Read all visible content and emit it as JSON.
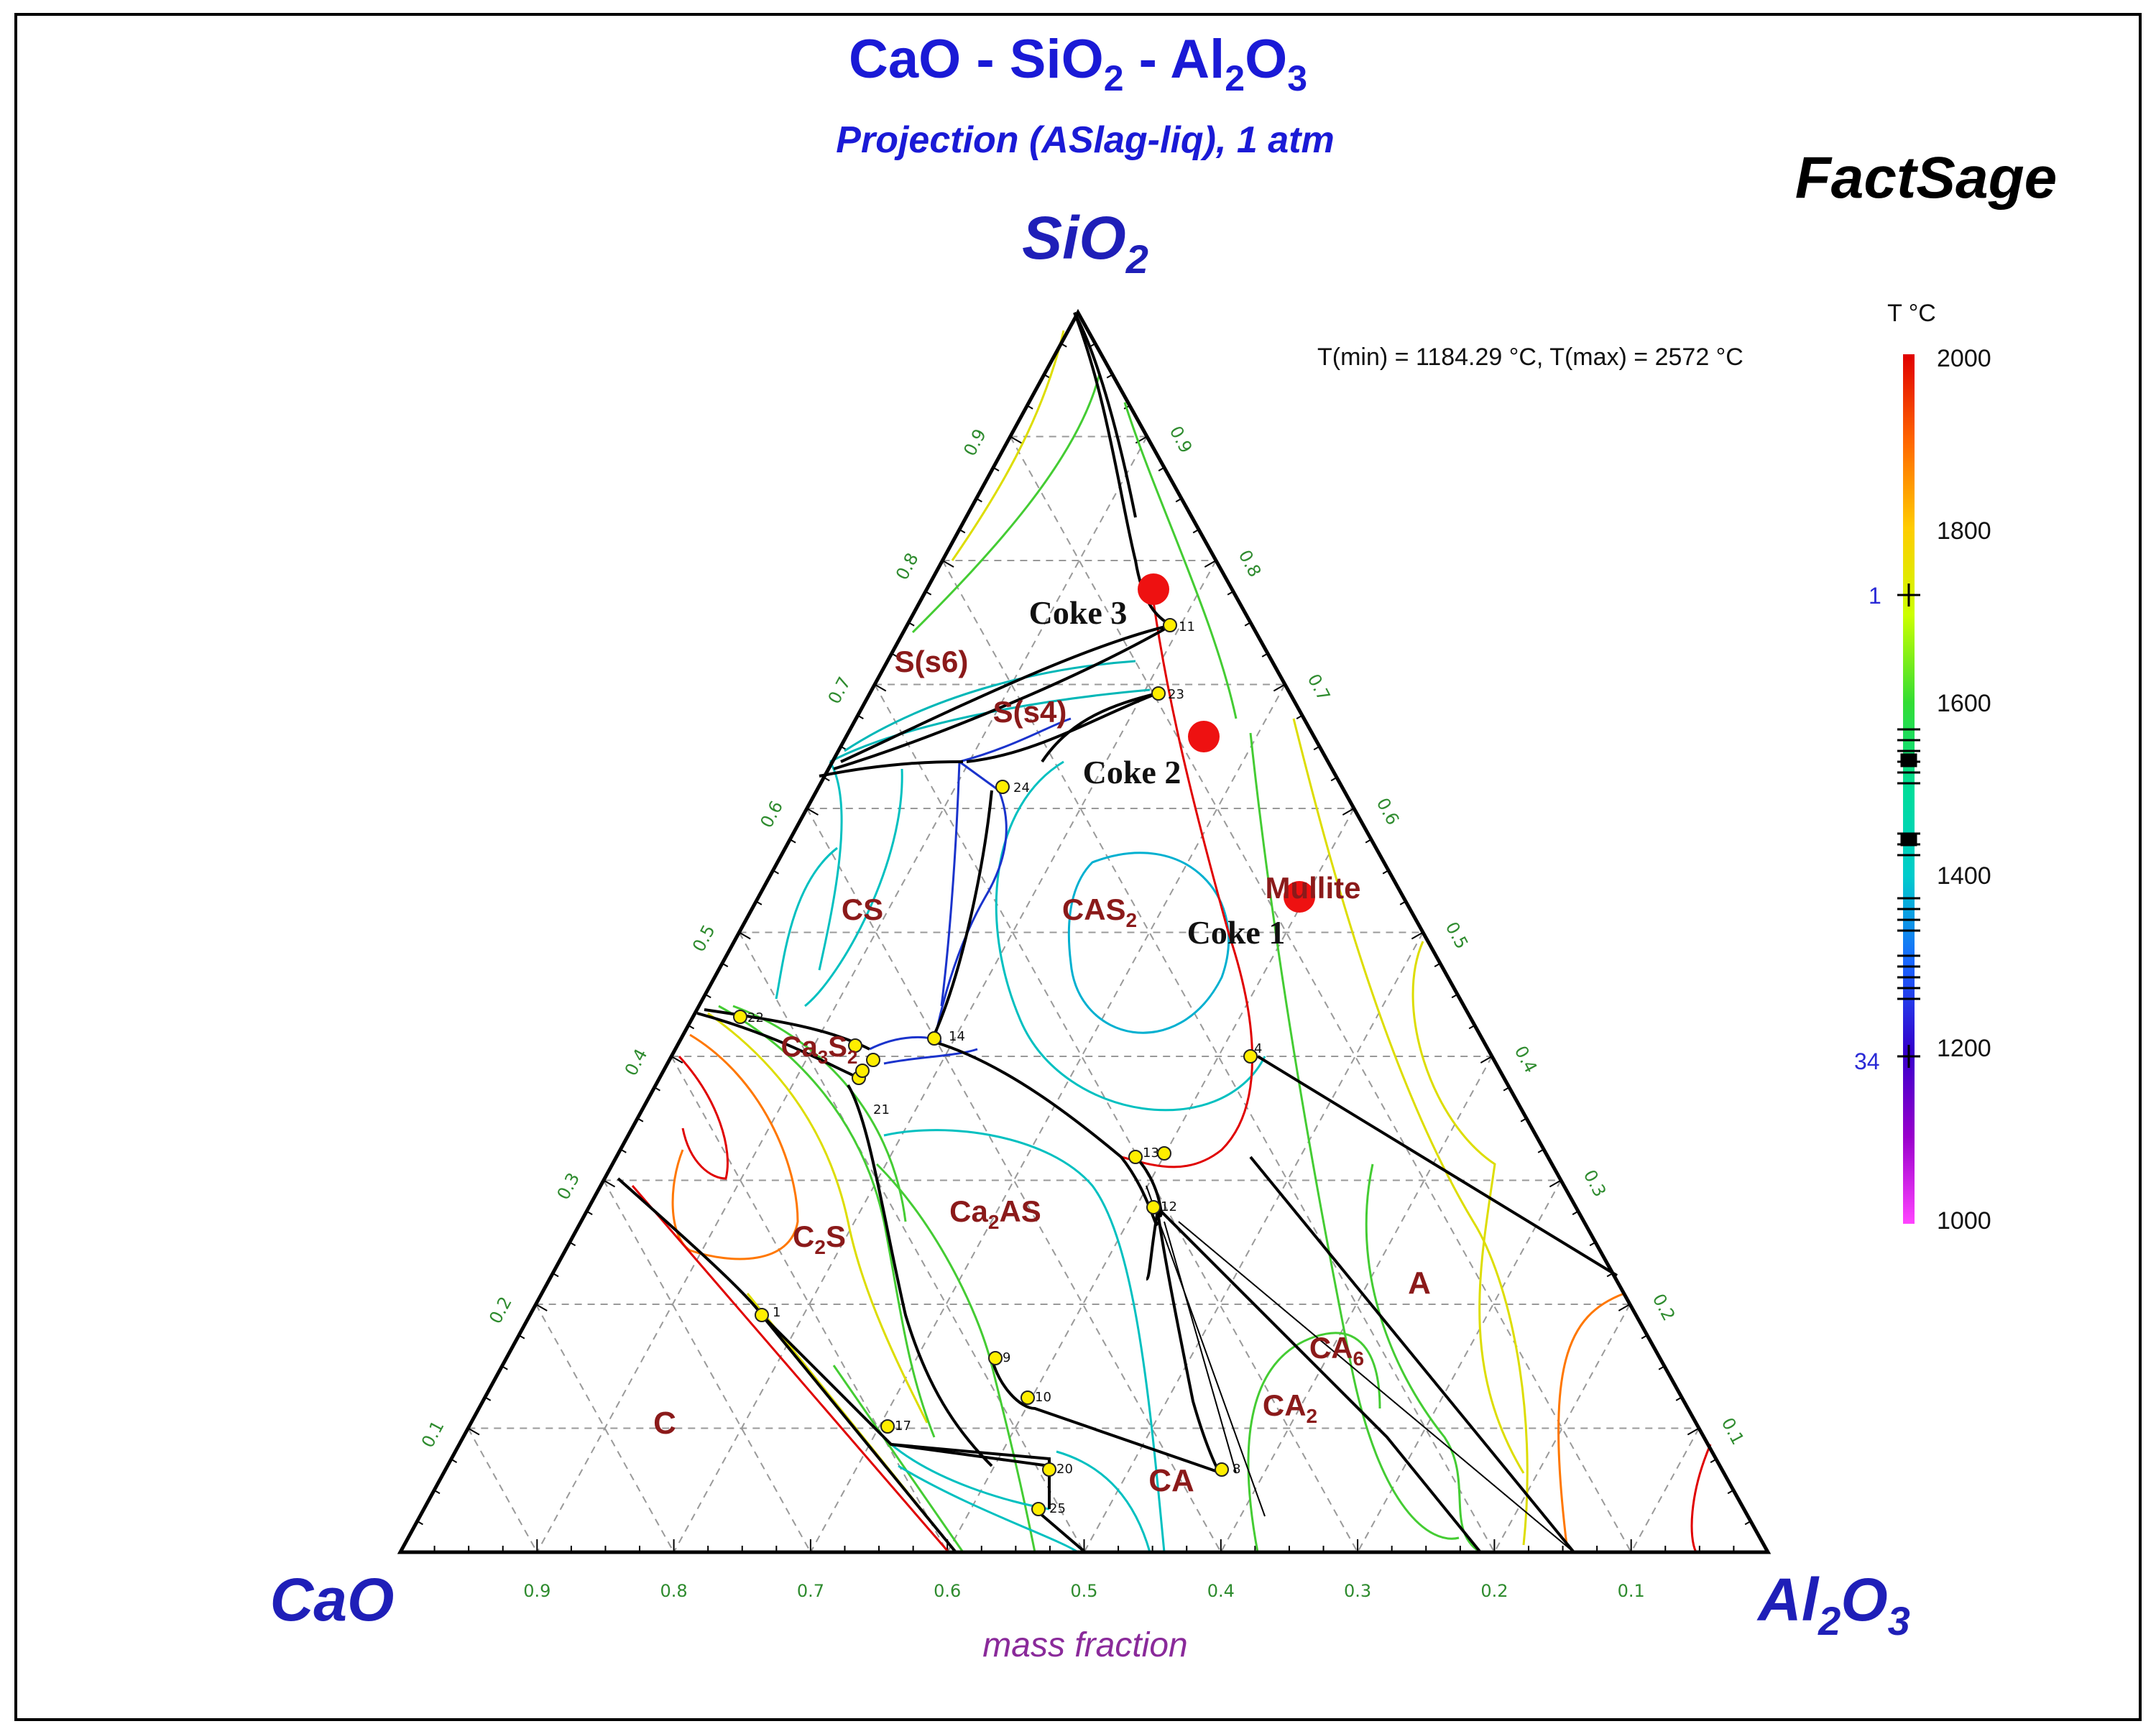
{
  "title": "CaO - SiO",
  "title_sub1": "2",
  "title_mid": " - Al",
  "title_sub2": "2",
  "title_end": "O",
  "title_sub3": "3",
  "subtitle": "Projection (ASlag-liq),  1 atm",
  "brand": "FactSage",
  "corners": {
    "top": {
      "main": "SiO",
      "sub": "2"
    },
    "left": {
      "main": "CaO"
    },
    "right": {
      "main": "Al",
      "sub1": "2",
      "main2": "O",
      "sub2": "3"
    }
  },
  "axis_note": "mass fraction",
  "t_range": "T(min) = 1184.29 °C, T(max) = 2572 °C",
  "colorbar": {
    "title": "T °C",
    "ticks": [
      "2000",
      "1800",
      "1600",
      "1400",
      "1200",
      "1000"
    ],
    "marker_labels": [
      "1",
      "34"
    ],
    "colors": [
      "#e00000",
      "#ff6600",
      "#ffcc00",
      "#ccff00",
      "#33dd33",
      "#00dd99",
      "#00cccc",
      "#1a66ff",
      "#3300cc",
      "#9900cc",
      "#ff44ff"
    ]
  },
  "tick_labels": [
    "0.9",
    "0.8",
    "0.7",
    "0.6",
    "0.5",
    "0.4",
    "0.3",
    "0.2",
    "0.1"
  ],
  "phases": {
    "cs": "CS",
    "cas2": {
      "main": "CAS",
      "sub": "2"
    },
    "c3s2": {
      "main": "Ca",
      "sub1": "3",
      "main2": "S",
      "sub2": "2"
    },
    "c2s": {
      "main": "C",
      "sub": "2",
      "main2": "S"
    },
    "c2as": {
      "main": "Ca",
      "sub": "2",
      "main2": "AS"
    },
    "c": "C",
    "ca": "CA",
    "ca2": {
      "main": "CA",
      "sub": "2"
    },
    "ca6": {
      "main": "CA",
      "sub": "6"
    },
    "a": "A",
    "mullite": "Mullite",
    "s_s6": "S(s6)",
    "s_s4": "S(s4)"
  },
  "cokes": [
    "Coke 3",
    "Coke 2",
    "Coke 1"
  ],
  "point_numbers": [
    "11",
    "23",
    "24",
    "22",
    "21",
    "13",
    "12",
    "14",
    "9",
    "10",
    "17",
    "20",
    "25",
    "8",
    "1",
    "4"
  ]
}
